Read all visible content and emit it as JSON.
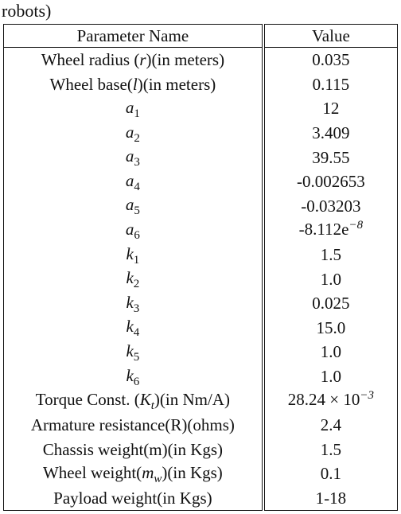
{
  "caption": "robots)",
  "table": {
    "headers": [
      "Parameter Name",
      "Value"
    ],
    "rows": [
      {
        "pre": "Wheel radius (",
        "sym": "r",
        "sub": "",
        "post": ")(in meters)",
        "value": "0.035",
        "sup": ""
      },
      {
        "pre": "Wheel base(",
        "sym": "l",
        "sub": "",
        "post": ")(in meters)",
        "value": "0.115",
        "sup": ""
      },
      {
        "pre": "",
        "sym": "a",
        "sub": "1",
        "post": "",
        "value": "12",
        "sup": ""
      },
      {
        "pre": "",
        "sym": "a",
        "sub": "2",
        "post": "",
        "value": "3.409",
        "sup": ""
      },
      {
        "pre": "",
        "sym": "a",
        "sub": "3",
        "post": "",
        "value": "39.55",
        "sup": ""
      },
      {
        "pre": "",
        "sym": "a",
        "sub": "4",
        "post": "",
        "value": "-0.002653",
        "sup": ""
      },
      {
        "pre": "",
        "sym": "a",
        "sub": "5",
        "post": "",
        "value": "-0.03203",
        "sup": ""
      },
      {
        "pre": "",
        "sym": "a",
        "sub": "6",
        "post": "",
        "value": "-8.112e",
        "sup": "−8"
      },
      {
        "pre": "",
        "sym": "k",
        "sub": "1",
        "post": "",
        "value": "1.5",
        "sup": ""
      },
      {
        "pre": "",
        "sym": "k",
        "sub": "2",
        "post": "",
        "value": "1.0",
        "sup": ""
      },
      {
        "pre": "",
        "sym": "k",
        "sub": "3",
        "post": "",
        "value": "0.025",
        "sup": ""
      },
      {
        "pre": "",
        "sym": "k",
        "sub": "4",
        "post": "",
        "value": "15.0",
        "sup": ""
      },
      {
        "pre": "",
        "sym": "k",
        "sub": "5",
        "post": "",
        "value": "1.0",
        "sup": ""
      },
      {
        "pre": "",
        "sym": "k",
        "sub": "6",
        "post": "",
        "value": "1.0",
        "sup": ""
      },
      {
        "pre": "Torque Const. (",
        "sym": "K",
        "sub": "t",
        "post": ")(in Nm/A)",
        "value": "28.24 × 10",
        "sup": "−3"
      },
      {
        "pre": "Armature resistance(R)(ohms)",
        "sym": "",
        "sub": "",
        "post": "",
        "value": "2.4",
        "sup": ""
      },
      {
        "pre": "Chassis weight(m)(in Kgs)",
        "sym": "",
        "sub": "",
        "post": "",
        "value": "1.5",
        "sup": ""
      },
      {
        "pre": "Wheel weight(",
        "sym": "m",
        "sub": "w",
        "post": ")(in Kgs)",
        "value": "0.1",
        "sup": ""
      },
      {
        "pre": "Payload weight(in Kgs)",
        "sym": "",
        "sub": "",
        "post": "",
        "value": "1-18",
        "sup": ""
      }
    ]
  }
}
